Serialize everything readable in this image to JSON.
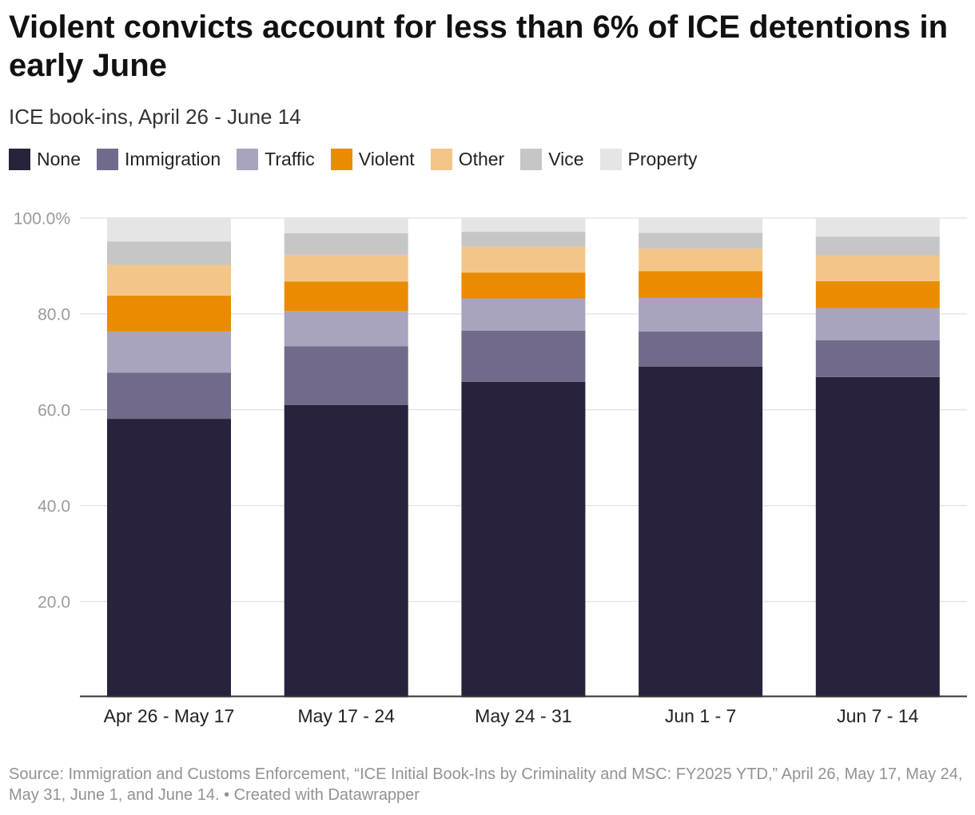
{
  "title": "Violent convicts account for less than 6% of ICE detentions in early June",
  "subtitle": "ICE book-ins, April 26 - June 14",
  "footer": "Source: Immigration and Customs Enforcement, “ICE Initial Book-Ins by Criminality and MSC: FY2025 YTD,” April 26, May 17, May 24, May 31, June 1, and June 14. • Created with Datawrapper",
  "chart_data": {
    "type": "bar",
    "stacked": true,
    "categories": [
      "Apr 26 - May 17",
      "May 17 - 24",
      "May 24 - 31",
      "Jun 1 - 7",
      "Jun 7 - 14"
    ],
    "series": [
      {
        "name": "None",
        "color": "#28223c",
        "values": [
          58.1,
          61.0,
          65.8,
          69.0,
          66.8
        ]
      },
      {
        "name": "Immigration",
        "color": "#726a8a",
        "values": [
          9.6,
          12.2,
          10.7,
          7.3,
          7.7
        ]
      },
      {
        "name": "Traffic",
        "color": "#a8a4bd",
        "values": [
          8.6,
          7.4,
          6.7,
          7.0,
          6.7
        ]
      },
      {
        "name": "Violent",
        "color": "#eb8b00",
        "values": [
          7.5,
          6.1,
          5.4,
          5.6,
          5.6
        ]
      },
      {
        "name": "Other",
        "color": "#f3c688",
        "values": [
          6.4,
          5.6,
          5.4,
          4.7,
          5.4
        ]
      },
      {
        "name": "Vice",
        "color": "#c6c6c6",
        "values": [
          4.9,
          4.5,
          3.1,
          3.3,
          3.9
        ]
      },
      {
        "name": "Property",
        "color": "#e5e5e5",
        "values": [
          4.9,
          3.2,
          2.9,
          3.1,
          3.9
        ]
      }
    ],
    "ylim": [
      0,
      100
    ],
    "yticks": [
      20,
      40,
      60,
      80,
      100
    ],
    "ytick_labels": [
      "20.0",
      "40.0",
      "60.0",
      "80.0",
      "100.0%"
    ],
    "grid": true,
    "legend": "top-left"
  }
}
